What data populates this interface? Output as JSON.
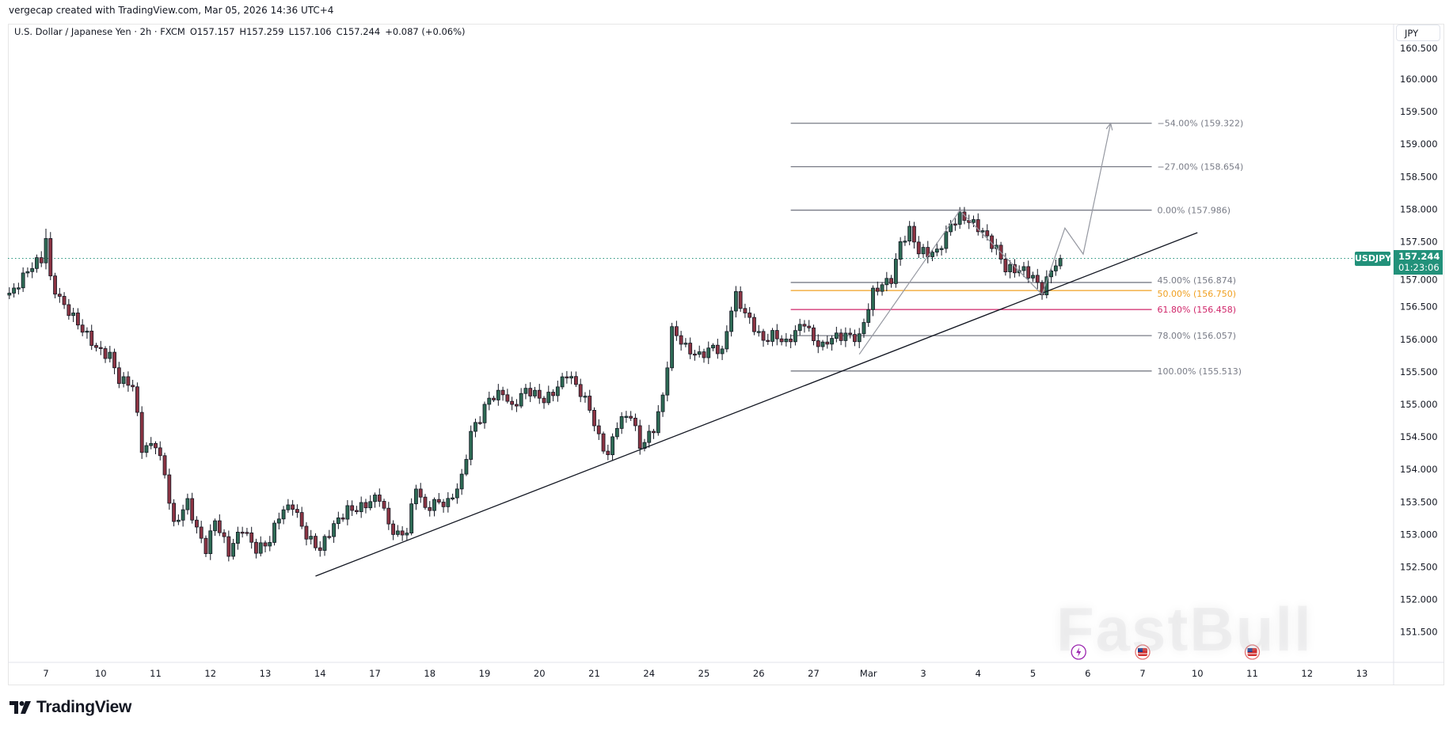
{
  "credit": "vergecap created with TradingView.com, Mar 05, 2026 14:36 UTC+4",
  "legend": {
    "symbol_name": "U.S. Dollar / Japanese Yen · 2h · FXCM",
    "open": "O157.157",
    "high": "H157.259",
    "low": "L157.106",
    "close": "C157.244",
    "change": "+0.087 (+0.06%)"
  },
  "currency": "JPY",
  "symbol_tag": "USDJPY",
  "last_price": "157.244",
  "countdown": "01:23:06",
  "brand": "TradingView",
  "watermark": "FastBull",
  "colors": {
    "up": "#2e6b55",
    "down": "#8c3443",
    "fib_line": "#787b86",
    "fib_50": "#f0a020",
    "fib_618": "#d0266a",
    "price_tag": "#22917a"
  },
  "chart_data": {
    "type": "candlestick",
    "interval": "2h",
    "ylim": [
      151.0,
      160.7
    ],
    "y_ticks": [
      "151.500",
      "152.000",
      "152.500",
      "153.000",
      "153.500",
      "154.000",
      "154.500",
      "155.000",
      "155.500",
      "156.000",
      "156.500",
      "157.000",
      "157.500",
      "158.000",
      "158.500",
      "159.000",
      "159.500",
      "160.000",
      "160.500"
    ],
    "x_ticks": [
      "7",
      "10",
      "11",
      "12",
      "13",
      "14",
      "17",
      "18",
      "19",
      "20",
      "21",
      "24",
      "25",
      "26",
      "27",
      "Mar",
      "3",
      "4",
      "5",
      "6",
      "7",
      "10",
      "11",
      "12",
      "13"
    ],
    "close_path": [
      [
        "Feb 6 08:00",
        156.73
      ],
      [
        "Feb 6 16:00",
        157.02
      ],
      [
        "Feb 6 22:00",
        157.2
      ],
      [
        "Feb 7 00:00",
        157.55
      ],
      [
        "Feb 7 02:00",
        156.95
      ],
      [
        "Feb 7 06:00",
        156.67
      ],
      [
        "Feb 7 16:00",
        156.09
      ],
      [
        "Feb 7 22:00",
        155.87
      ],
      [
        "Feb 10 04:00",
        155.8
      ],
      [
        "Feb 10 08:00",
        155.38
      ],
      [
        "Feb 10 14:00",
        155.24
      ],
      [
        "Feb 10 18:00",
        154.31
      ],
      [
        "Feb 11 00:00",
        154.45
      ],
      [
        "Feb 11 04:00",
        153.95
      ],
      [
        "Feb 11 08:00",
        153.1
      ],
      [
        "Feb 11 14:00",
        153.46
      ],
      [
        "Feb 11 18:00",
        153.1
      ],
      [
        "Feb 11 22:00",
        152.82
      ],
      [
        "Feb 12 02:00",
        153.25
      ],
      [
        "Feb 12 08:00",
        152.67
      ],
      [
        "Feb 12 14:00",
        153.1
      ],
      [
        "Feb 12 20:00",
        152.82
      ],
      [
        "Feb 13 02:00",
        152.89
      ],
      [
        "Feb 13 06:00",
        153.25
      ],
      [
        "Feb 13 12:00",
        153.46
      ],
      [
        "Feb 13 18:00",
        153.03
      ],
      [
        "Feb 14 00:00",
        152.75
      ],
      [
        "Feb 14 06:00",
        153.1
      ],
      [
        "Feb 14 12:00",
        153.42
      ],
      [
        "Feb 14 20:00",
        153.46
      ],
      [
        "Feb 17 02:00",
        153.53
      ],
      [
        "Feb 17 06:00",
        153.13
      ],
      [
        "Feb 17 10:00",
        153.03
      ],
      [
        "Feb 17 14:00",
        153.1
      ],
      [
        "Feb 17 18:00",
        153.75
      ],
      [
        "Feb 17 22:00",
        153.32
      ],
      [
        "Feb 18 02:00",
        153.46
      ],
      [
        "Feb 18 08:00",
        153.53
      ],
      [
        "Feb 18 14:00",
        153.88
      ],
      [
        "Feb 18 18:00",
        154.53
      ],
      [
        "Feb 18 22:00",
        154.74
      ],
      [
        "Feb 19 02:00",
        155.1
      ],
      [
        "Feb 19 08:00",
        155.24
      ],
      [
        "Feb 19 12:00",
        154.95
      ],
      [
        "Feb 19 18:00",
        155.17
      ],
      [
        "Feb 20 02:00",
        155.1
      ],
      [
        "Feb 20 08:00",
        155.3
      ],
      [
        "Feb 20 12:00",
        155.45
      ],
      [
        "Feb 20 16:00",
        155.24
      ],
      [
        "Feb 20 22:00",
        154.95
      ],
      [
        "Feb 21 02:00",
        154.53
      ],
      [
        "Feb 21 06:00",
        154.24
      ],
      [
        "Feb 21 10:00",
        154.67
      ],
      [
        "Feb 21 16:00",
        154.81
      ],
      [
        "Feb 21 20:00",
        154.38
      ],
      [
        "Feb 24 02:00",
        154.67
      ],
      [
        "Feb 24 06:00",
        155.1
      ],
      [
        "Feb 24 10:00",
        156.09
      ],
      [
        "Feb 24 16:00",
        155.87
      ],
      [
        "Feb 24 22:00",
        155.8
      ],
      [
        "Feb 25 04:00",
        155.87
      ],
      [
        "Feb 25 08:00",
        155.74
      ],
      [
        "Feb 25 12:00",
        156.45
      ],
      [
        "Feb 25 14:00",
        156.67
      ],
      [
        "Feb 25 18:00",
        156.45
      ],
      [
        "Feb 25 22:00",
        156.22
      ],
      [
        "Feb 26 02:00",
        155.95
      ],
      [
        "Feb 26 06:00",
        156.02
      ],
      [
        "Feb 26 12:00",
        155.95
      ],
      [
        "Feb 26 16:00",
        156.17
      ],
      [
        "Feb 26 20:00",
        156.3
      ],
      [
        "Feb 27 00:00",
        155.95
      ],
      [
        "Feb 27 04:00",
        155.84
      ],
      [
        "Feb 27 08:00",
        156.02
      ],
      [
        "Feb 27 14:00",
        156.12
      ],
      [
        "Feb 27 20:00",
        156.02
      ],
      [
        "Mar 2 02:00",
        156.67
      ],
      [
        "Mar 2 06:00",
        156.84
      ],
      [
        "Mar 2 10:00",
        156.97
      ],
      [
        "Mar 2 14:00",
        157.52
      ],
      [
        "Mar 2 18:00",
        157.66
      ],
      [
        "Mar 2 22:00",
        157.3
      ],
      [
        "Mar 3 02:00",
        157.3
      ],
      [
        "Mar 3 06:00",
        157.37
      ],
      [
        "Mar 3 12:00",
        157.8
      ],
      [
        "Mar 3 16:00",
        157.87
      ],
      [
        "Mar 3 20:00",
        157.77
      ],
      [
        "Mar 4 02:00",
        157.66
      ],
      [
        "Mar 4 08:00",
        157.44
      ],
      [
        "Mar 4 12:00",
        157.09
      ],
      [
        "Mar 4 16:00",
        157.02
      ],
      [
        "Mar 4 20:00",
        157.02
      ],
      [
        "Mar 5 00:00",
        156.97
      ],
      [
        "Mar 5 04:00",
        156.8
      ],
      [
        "Mar 5 08:00",
        157.09
      ],
      [
        "Mar 5 12:00",
        157.244
      ]
    ],
    "last_price": 157.244,
    "fibonacci": {
      "start": "Feb 26 14:00",
      "end": "Mar 7 04:00",
      "levels": [
        {
          "label": "−54.00% (159.322)",
          "price": 159.322,
          "color": "#787b86"
        },
        {
          "label": "−27.00% (158.654)",
          "price": 158.654,
          "color": "#787b86"
        },
        {
          "label": "0.00% (157.986)",
          "price": 157.986,
          "color": "#787b86"
        },
        {
          "label": "45.00% (156.874)",
          "price": 156.874,
          "color": "#787b86"
        },
        {
          "label": "50.00% (156.750)",
          "price": 156.75,
          "color": "#f0a020"
        },
        {
          "label": "61.80% (156.458)",
          "price": 156.458,
          "color": "#d0266a"
        },
        {
          "label": "78.00% (156.057)",
          "price": 156.057,
          "color": "#787b86"
        },
        {
          "label": "100.00% (155.513)",
          "price": 155.513,
          "color": "#787b86"
        }
      ]
    },
    "trendline": [
      [
        "Feb 13 22:00",
        152.36
      ],
      [
        "Mar 10 00:00",
        157.64
      ]
    ],
    "projection_path": [
      [
        "Feb 27 20:00",
        155.77
      ],
      [
        "Mar 3 16:00",
        157.98
      ],
      [
        "Mar 5 04:00",
        156.69
      ],
      [
        "Mar 5 14:00",
        157.71
      ],
      [
        "Mar 5 22:00",
        157.31
      ],
      [
        "Mar 6 10:00",
        159.32
      ]
    ],
    "events": [
      {
        "icon": "lightning-icon",
        "date": "Mar 5 20:00"
      },
      {
        "icon": "us-flag-icon",
        "date": "Mar 7 00:00"
      },
      {
        "icon": "us-flag-icon",
        "date": "Mar 11 00:00"
      }
    ]
  }
}
